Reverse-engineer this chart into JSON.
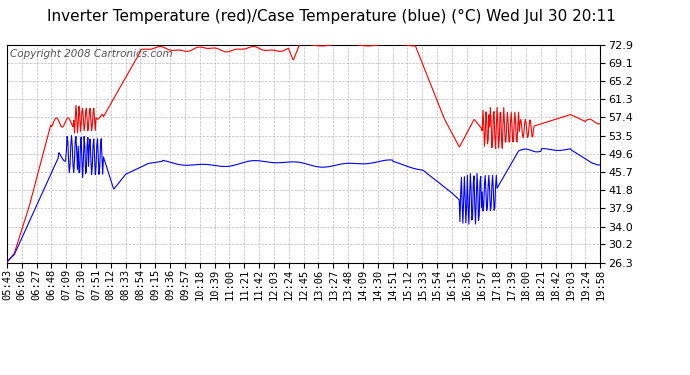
{
  "title": "Inverter Temperature (red)/Case Temperature (blue) (°C) Wed Jul 30 20:11",
  "copyright": "Copyright 2008 Cartronics.com",
  "yticks": [
    26.3,
    30.2,
    34.0,
    37.9,
    41.8,
    45.7,
    49.6,
    53.5,
    57.4,
    61.3,
    65.2,
    69.1,
    72.9
  ],
  "ymin": 26.3,
  "ymax": 72.9,
  "red_color": "#ff0000",
  "blue_color": "#0000ff",
  "background_color": "#ffffff",
  "grid_color": "#bbbbbb",
  "title_fontsize": 11,
  "copyright_fontsize": 7.5,
  "tick_fontsize": 8,
  "xtick_labels": [
    "05:43",
    "06:06",
    "06:27",
    "06:48",
    "07:09",
    "07:30",
    "07:51",
    "08:12",
    "08:33",
    "08:54",
    "09:15",
    "09:36",
    "09:57",
    "10:18",
    "10:39",
    "11:00",
    "11:21",
    "11:42",
    "12:03",
    "12:24",
    "12:45",
    "13:06",
    "13:27",
    "13:48",
    "14:09",
    "14:30",
    "14:51",
    "15:12",
    "15:33",
    "15:54",
    "16:15",
    "16:36",
    "16:57",
    "17:18",
    "17:39",
    "18:00",
    "18:21",
    "18:42",
    "19:03",
    "19:24",
    "19:58"
  ]
}
